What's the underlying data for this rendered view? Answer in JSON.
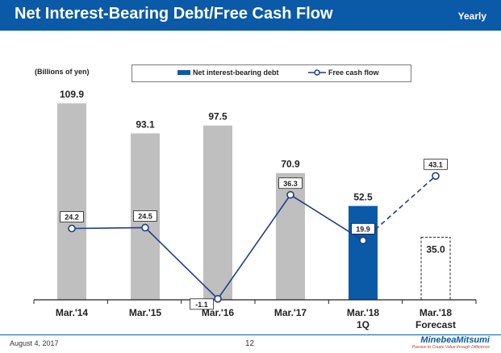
{
  "header": {
    "title": "Net Interest-Bearing Debt/Free Cash Flow",
    "period": "Yearly"
  },
  "legend": {
    "debt": "Net interest-bearing debt",
    "fcf": "Free cash flow"
  },
  "footer": {
    "date": "August 4, 2017",
    "page": "12",
    "logo": "MinebeaMitsumi",
    "tagline": "Passion to Create Value through Difference"
  },
  "colors": {
    "actual_bar": "#bfbfbf",
    "highlight_bar": "#0a5aa8",
    "line": "#1f3e8a",
    "header": "#0a5aa8"
  },
  "chart_data": {
    "type": "bar+line",
    "units": "(Billions of yen)",
    "categories": [
      {
        "line1": "Mar.'14",
        "line2": ""
      },
      {
        "line1": "Mar.'15",
        "line2": ""
      },
      {
        "line1": "Mar.'16",
        "line2": ""
      },
      {
        "line1": "Mar.'17",
        "line2": ""
      },
      {
        "line1": "Mar.'18",
        "line2": "1Q"
      },
      {
        "line1": "Mar.'18",
        "line2": "Forecast"
      }
    ],
    "series": [
      {
        "name": "Net interest-bearing debt",
        "kind": "bar",
        "values": [
          109.9,
          93.1,
          97.5,
          70.9,
          52.5,
          35.0
        ],
        "labels": [
          "109.9",
          "93.1",
          "97.5",
          "70.9",
          "52.5",
          "35.0"
        ],
        "styles": [
          "actual",
          "actual",
          "actual",
          "actual",
          "highlight",
          "forecast"
        ]
      },
      {
        "name": "Free cash flow",
        "kind": "line",
        "values": [
          24.2,
          24.5,
          -1.1,
          36.3,
          19.9,
          43.1
        ],
        "labels": [
          "24.2",
          "24.5",
          "-1.1",
          "36.3",
          "19.9",
          "43.1"
        ],
        "dashed_from_index": 4,
        "negative_index": 2
      }
    ],
    "debt_ylim": [
      0,
      120
    ],
    "fcf_ylim": [
      -8,
      100
    ]
  }
}
